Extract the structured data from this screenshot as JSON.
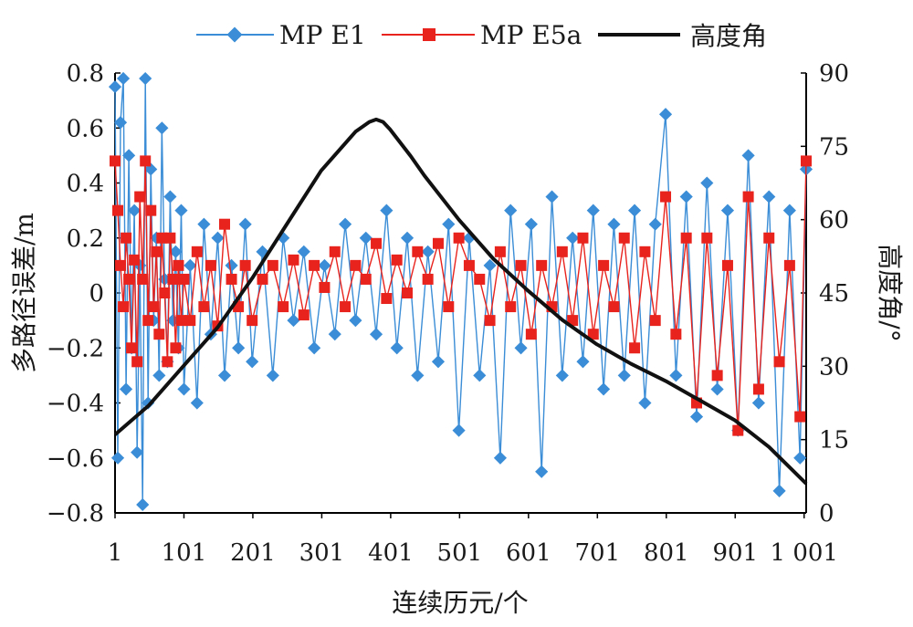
{
  "chart_data": {
    "type": "line",
    "x_axis": {
      "label": "连续历元/个",
      "ticks": [
        "1",
        "101",
        "201",
        "301",
        "401",
        "501",
        "601",
        "701",
        "801",
        "901",
        "1 001"
      ],
      "tick_values": [
        1,
        101,
        201,
        301,
        401,
        501,
        601,
        701,
        801,
        901,
        1001
      ],
      "range": [
        1,
        1004
      ]
    },
    "y_left": {
      "label": "多路径误差/m",
      "range": [
        -0.8,
        0.8
      ],
      "ticks": [
        "0.8",
        "0.6",
        "0.4",
        "0.2",
        "0",
        "−0.2",
        "−0.4",
        "−0.6",
        "−0.8"
      ],
      "tick_values": [
        0.8,
        0.6,
        0.4,
        0.2,
        0,
        -0.2,
        -0.4,
        -0.6,
        -0.8
      ]
    },
    "y_right": {
      "label": "高度角/°",
      "range": [
        0,
        90
      ],
      "ticks": [
        "90",
        "75",
        "60",
        "45",
        "30",
        "15",
        "0"
      ],
      "tick_values": [
        90,
        75,
        60,
        45,
        30,
        15,
        0
      ]
    },
    "series": [
      {
        "name": "MP E1",
        "axis": "left",
        "color": "#3a8dd6",
        "marker": "diamond",
        "x": [
          1,
          5,
          9,
          13,
          17,
          21,
          25,
          29,
          33,
          37,
          41,
          45,
          49,
          53,
          57,
          61,
          65,
          69,
          73,
          77,
          81,
          85,
          89,
          93,
          97,
          101,
          110,
          120,
          130,
          140,
          150,
          160,
          170,
          180,
          190,
          200,
          215,
          230,
          245,
          260,
          275,
          290,
          305,
          320,
          335,
          350,
          365,
          380,
          395,
          410,
          425,
          440,
          455,
          470,
          485,
          500,
          515,
          530,
          545,
          560,
          575,
          590,
          605,
          620,
          635,
          650,
          665,
          680,
          695,
          710,
          725,
          740,
          755,
          770,
          785,
          800,
          815,
          830,
          845,
          860,
          875,
          890,
          905,
          920,
          935,
          950,
          965,
          980,
          995,
          1004
        ],
        "y": [
          0.75,
          -0.6,
          0.62,
          0.78,
          -0.35,
          0.5,
          -0.2,
          0.3,
          -0.58,
          0.1,
          -0.77,
          0.78,
          -0.4,
          0.45,
          -0.1,
          0.2,
          -0.3,
          0.6,
          0.05,
          -0.25,
          0.35,
          -0.1,
          0.15,
          -0.2,
          0.3,
          -0.35,
          0.1,
          -0.4,
          0.25,
          -0.15,
          0.2,
          -0.3,
          0.1,
          -0.2,
          0.25,
          -0.25,
          0.15,
          -0.3,
          0.2,
          -0.1,
          0.15,
          -0.2,
          0.1,
          -0.15,
          0.25,
          -0.1,
          0.2,
          -0.15,
          0.3,
          -0.2,
          0.2,
          -0.3,
          0.15,
          -0.25,
          0.25,
          -0.5,
          0.2,
          -0.3,
          0.1,
          -0.6,
          0.3,
          -0.2,
          0.25,
          -0.65,
          0.35,
          -0.3,
          0.2,
          -0.25,
          0.3,
          -0.35,
          0.25,
          -0.3,
          0.3,
          -0.4,
          0.25,
          0.65,
          -0.3,
          0.35,
          -0.45,
          0.4,
          -0.35,
          0.3,
          -0.5,
          0.5,
          -0.4,
          0.35,
          -0.72,
          0.3,
          -0.6,
          0.45
        ]
      },
      {
        "name": "MP E5a",
        "axis": "left",
        "color": "#e8231d",
        "marker": "square",
        "x": [
          1,
          5,
          9,
          13,
          17,
          21,
          25,
          29,
          33,
          37,
          41,
          45,
          49,
          53,
          57,
          61,
          65,
          69,
          73,
          77,
          81,
          85,
          89,
          93,
          97,
          101,
          110,
          120,
          130,
          140,
          150,
          160,
          170,
          180,
          190,
          200,
          215,
          230,
          245,
          260,
          275,
          290,
          305,
          320,
          335,
          350,
          365,
          380,
          395,
          410,
          425,
          440,
          455,
          470,
          485,
          500,
          515,
          530,
          545,
          560,
          575,
          590,
          605,
          620,
          635,
          650,
          665,
          680,
          695,
          710,
          725,
          740,
          755,
          770,
          785,
          800,
          815,
          830,
          845,
          860,
          875,
          890,
          905,
          920,
          935,
          950,
          965,
          980,
          995,
          1004
        ],
        "y": [
          0.48,
          0.3,
          0.1,
          -0.05,
          0.2,
          0.05,
          -0.2,
          0.12,
          -0.25,
          0.35,
          0.05,
          0.48,
          -0.1,
          0.3,
          -0.05,
          0.15,
          -0.15,
          0.2,
          0.0,
          -0.25,
          0.2,
          0.05,
          -0.2,
          0.1,
          -0.1,
          0.05,
          -0.1,
          0.15,
          -0.05,
          0.1,
          -0.12,
          0.25,
          0.05,
          -0.05,
          0.1,
          -0.1,
          0.05,
          0.1,
          -0.05,
          0.12,
          -0.08,
          0.1,
          0.02,
          0.15,
          -0.05,
          0.1,
          0.05,
          0.18,
          -0.02,
          0.12,
          0.0,
          0.15,
          0.05,
          0.18,
          -0.05,
          0.2,
          0.1,
          0.05,
          -0.1,
          0.15,
          -0.05,
          0.1,
          -0.15,
          0.1,
          -0.05,
          0.15,
          -0.1,
          0.2,
          -0.15,
          0.1,
          -0.05,
          0.2,
          -0.2,
          0.15,
          -0.1,
          0.35,
          -0.15,
          0.2,
          -0.4,
          0.2,
          -0.3,
          0.1,
          -0.5,
          0.35,
          -0.35,
          0.2,
          -0.25,
          0.1,
          -0.45,
          0.48
        ]
      },
      {
        "name": "高度角",
        "axis": "right",
        "color": "#111111",
        "marker": "none",
        "x": [
          1,
          50,
          100,
          150,
          200,
          250,
          300,
          350,
          370,
          380,
          390,
          400,
          430,
          450,
          500,
          550,
          600,
          650,
          700,
          750,
          800,
          850,
          900,
          950,
          1004
        ],
        "y": [
          16,
          22,
          30,
          38,
          48,
          59,
          70,
          78,
          80,
          80.5,
          80,
          78.5,
          73,
          69,
          60,
          52,
          45.5,
          39.5,
          34.5,
          30.5,
          27,
          23,
          19,
          13.5,
          6
        ]
      }
    ],
    "legend": {
      "position": "top",
      "entries": [
        "MP E1",
        "MP E5a",
        "高度角"
      ]
    },
    "grid": false
  }
}
